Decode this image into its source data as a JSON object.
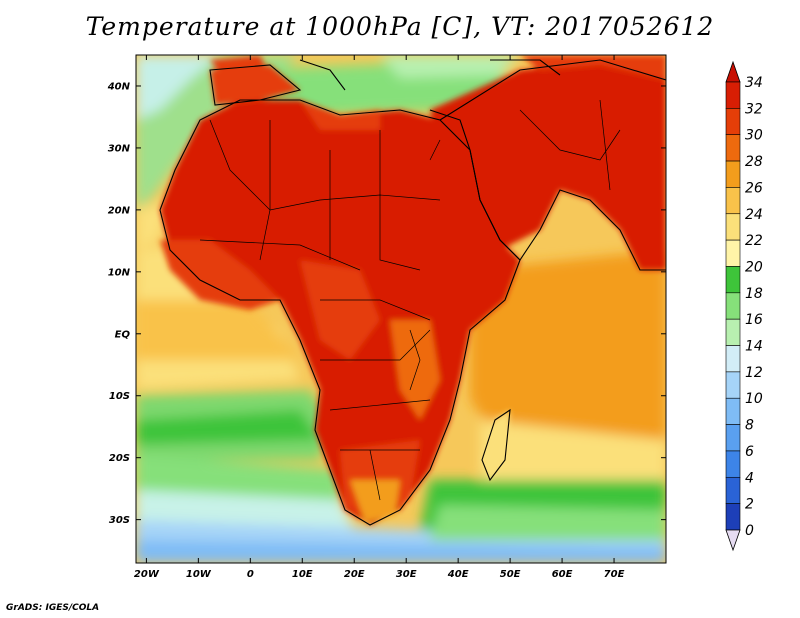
{
  "title": "Temperature at 1000hPa [C], VT: 2017052612",
  "credit": "GrADS: IGES/COLA",
  "map": {
    "lon_ticks": [
      "20W",
      "10W",
      "0",
      "10E",
      "20E",
      "30E",
      "40E",
      "50E",
      "60E",
      "70E"
    ],
    "lat_ticks": [
      "40N",
      "30N",
      "20N",
      "10N",
      "EQ",
      "10S",
      "20S",
      "30S"
    ],
    "lon_range": [
      -22,
      80
    ],
    "lat_range": [
      -37,
      45
    ]
  },
  "colorbar": {
    "labels": [
      "0",
      "2",
      "4",
      "6",
      "8",
      "10",
      "12",
      "14",
      "16",
      "18",
      "20",
      "22",
      "24",
      "26",
      "28",
      "30",
      "32",
      "34"
    ],
    "colors": [
      "#1a1a7a",
      "#1d3fb8",
      "#2a63d6",
      "#3d84e8",
      "#5aa0f0",
      "#7fbcf5",
      "#a6d4f8",
      "#d2edf7",
      "#b8f0b0",
      "#86e07a",
      "#3ec43a",
      "#fff4a8",
      "#fbe07a",
      "#f9c24a",
      "#f39d1c",
      "#ee6a0e",
      "#e53e08",
      "#d81e04",
      "#c80f02"
    ]
  }
}
